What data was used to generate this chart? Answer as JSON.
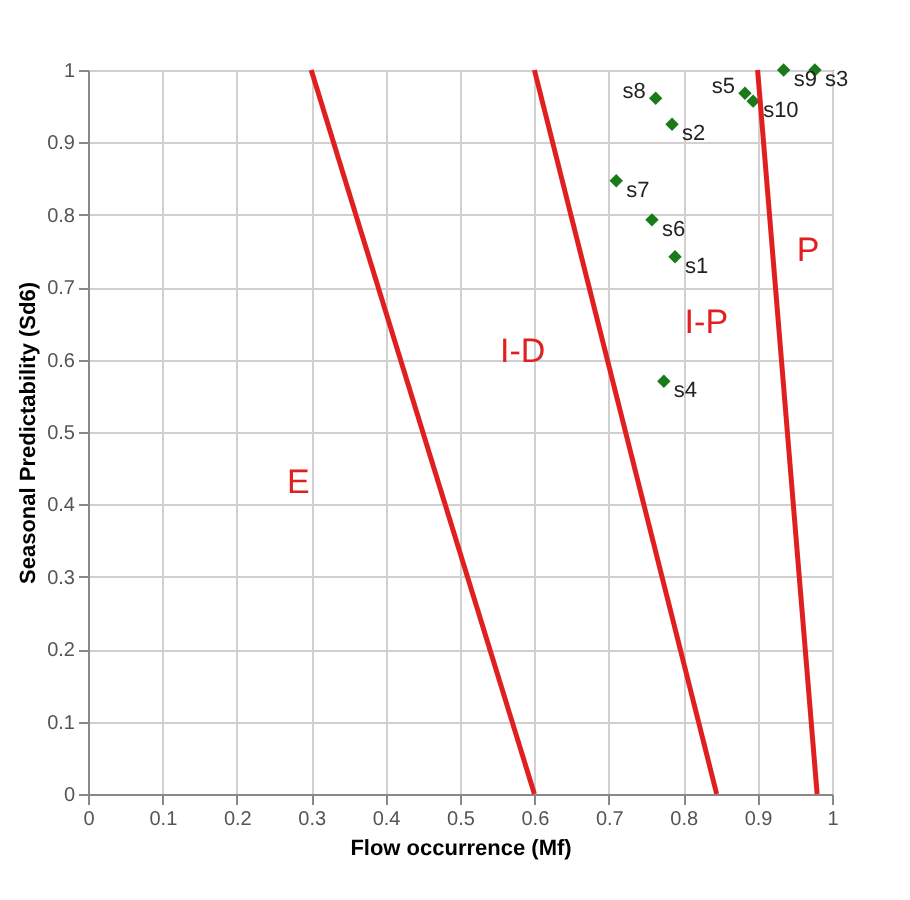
{
  "chart_data": {
    "type": "scatter",
    "xlabel": "Flow occurrence (Mf)",
    "ylabel": "Seasonal Predictability (Sd6)",
    "xlim": [
      0,
      1
    ],
    "ylim": [
      0,
      1
    ],
    "xticks": [
      0,
      0.1,
      0.2,
      0.3,
      0.4,
      0.5,
      0.6,
      0.7,
      0.8,
      0.9,
      1
    ],
    "yticks": [
      0,
      0.1,
      0.2,
      0.3,
      0.4,
      0.5,
      0.6,
      0.7,
      0.8,
      0.9,
      1
    ],
    "grid": true,
    "series": [
      {
        "color": "#1a7a1a",
        "marker": "diamond",
        "x": [
          0.789,
          0.785,
          0.977,
          0.774,
          0.883,
          0.758,
          0.71,
          0.763,
          0.935,
          0.894
        ],
        "values": [
          0.742,
          0.925,
          1,
          0.57,
          0.968,
          0.793,
          0.847,
          0.961,
          1,
          0.957
        ],
        "value_labels": [
          "s1",
          "s2",
          "s3",
          "s4",
          "s5",
          "s6",
          "s7",
          "s8",
          "s9",
          "s10"
        ]
      },
      {
        "type": "line",
        "color": "#e02020",
        "x": [
          0.3,
          0.6
        ],
        "values": [
          1,
          0
        ]
      },
      {
        "type": "line",
        "color": "#e02020",
        "x": [
          0.6,
          0.845
        ],
        "values": [
          1,
          0
        ]
      },
      {
        "type": "line",
        "color": "#e02020",
        "x": [
          0.9,
          0.98
        ],
        "values": [
          1,
          0
        ]
      }
    ],
    "annotations": [
      "E",
      "I-D",
      "I-P",
      "P"
    ]
  }
}
